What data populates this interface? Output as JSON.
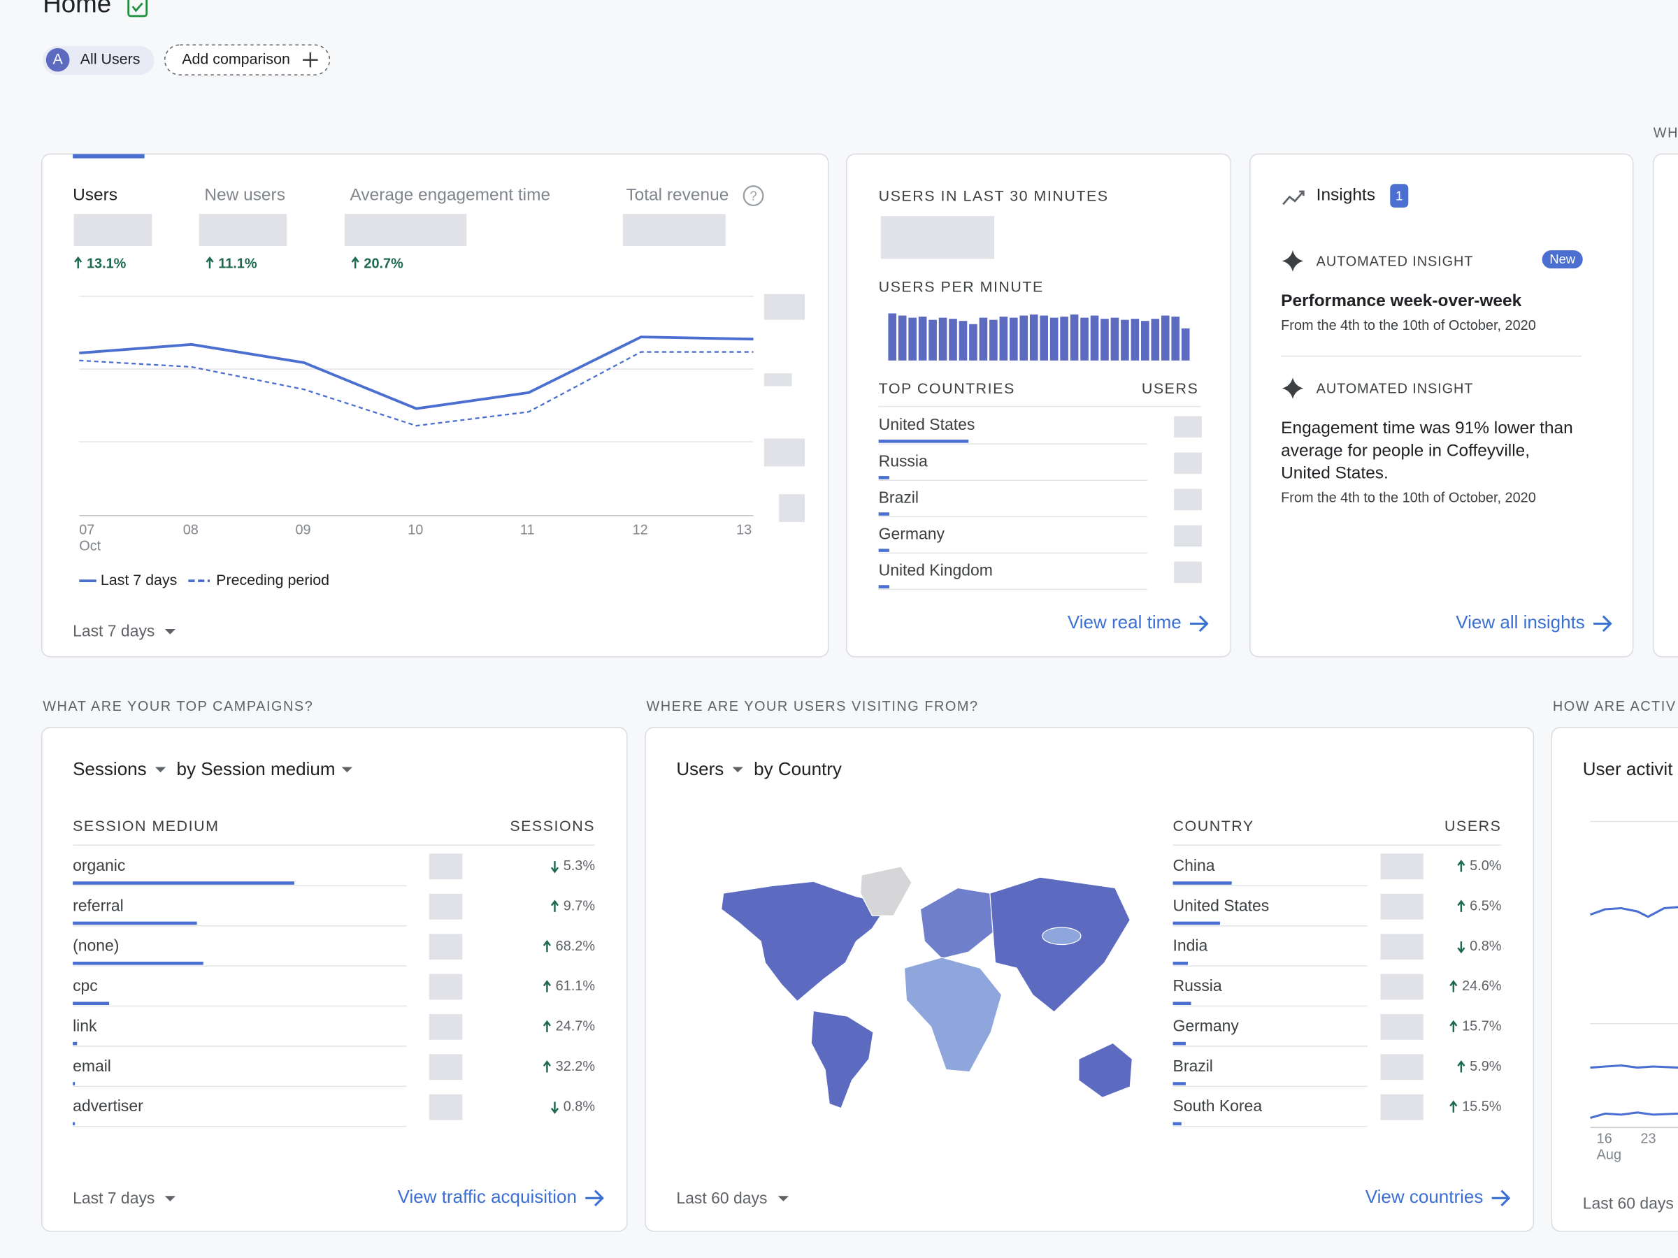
{
  "header": {
    "title": "Home"
  },
  "comparison_bar": {
    "segment_badge": "A",
    "segment": "All Users",
    "add_comparison": "Add comparison"
  },
  "overview_card": {
    "tabs": [
      {
        "label": "Users",
        "change": "13.1%",
        "direction": "up"
      },
      {
        "label": "New users",
        "change": "11.1%",
        "direction": "up"
      },
      {
        "label": "Average engagement time",
        "change": "20.7%",
        "direction": "up"
      },
      {
        "label": "Total revenue"
      }
    ],
    "x_labels": [
      "07",
      "08",
      "09",
      "10",
      "11",
      "12",
      "13"
    ],
    "x_month": "Oct",
    "legend": [
      "Last 7 days",
      "Preceding period"
    ],
    "date_range": "Last 7 days"
  },
  "realtime_card": {
    "title": "USERS IN LAST 30 MINUTES",
    "subtitle": "USERS PER MINUTE",
    "table_headers": [
      "TOP COUNTRIES",
      "USERS"
    ],
    "countries": [
      "United States",
      "Russia",
      "Brazil",
      "Germany",
      "United Kingdom"
    ],
    "link": "View real time"
  },
  "insights_card": {
    "title": "Insights",
    "count": 1,
    "insights": [
      {
        "kicker": "AUTOMATED INSIGHT",
        "badge": "New",
        "headline_lines": [
          "Performance week-over-week"
        ],
        "date": "From the 4th to the 10th of October, 2020"
      },
      {
        "kicker": "AUTOMATED INSIGHT",
        "headline_lines": [
          "Engagement time was 91% lower than",
          "average for people in Coffeyville,",
          "United States."
        ],
        "date": "From the 4th to the 10th of October, 2020"
      }
    ],
    "link": "View all insights"
  },
  "partial_heading": "WH",
  "campaigns_section": {
    "heading": "WHAT ARE YOUR TOP CAMPAIGNS?",
    "metric": "Sessions",
    "dimension": "by Session medium",
    "table_headers": [
      "SESSION MEDIUM",
      "SESSIONS"
    ],
    "rows": [
      {
        "label": "organic",
        "change": "5.3%",
        "direction": "down"
      },
      {
        "label": "referral",
        "change": "9.7%",
        "direction": "up"
      },
      {
        "label": "(none)",
        "change": "68.2%",
        "direction": "up"
      },
      {
        "label": "cpc",
        "change": "61.1%",
        "direction": "up"
      },
      {
        "label": "link",
        "change": "24.7%",
        "direction": "up"
      },
      {
        "label": "email",
        "change": "32.2%",
        "direction": "up"
      },
      {
        "label": "advertiser",
        "change": "0.8%",
        "direction": "down"
      }
    ],
    "date_range": "Last 7 days",
    "link": "View traffic acquisition"
  },
  "countries_section": {
    "heading": "WHERE ARE YOUR USERS VISITING FROM?",
    "metric": "Users",
    "dimension": "by Country",
    "table_headers": [
      "COUNTRY",
      "USERS"
    ],
    "rows": [
      {
        "label": "China",
        "change": "5.0%",
        "direction": "up"
      },
      {
        "label": "United States",
        "change": "6.5%",
        "direction": "up"
      },
      {
        "label": "India",
        "change": "0.8%",
        "direction": "down"
      },
      {
        "label": "Russia",
        "change": "24.6%",
        "direction": "up"
      },
      {
        "label": "Germany",
        "change": "15.7%",
        "direction": "up"
      },
      {
        "label": "Brazil",
        "change": "5.9%",
        "direction": "up"
      },
      {
        "label": "South Korea",
        "change": "15.5%",
        "direction": "up"
      }
    ],
    "date_range": "Last 60 days",
    "link": "View countries"
  },
  "activity_section": {
    "heading": "HOW ARE ACTIV",
    "title": "User activit",
    "x_labels": [
      "16",
      "23"
    ],
    "x_month": "Aug",
    "date_range": "Last 60 days"
  }
}
